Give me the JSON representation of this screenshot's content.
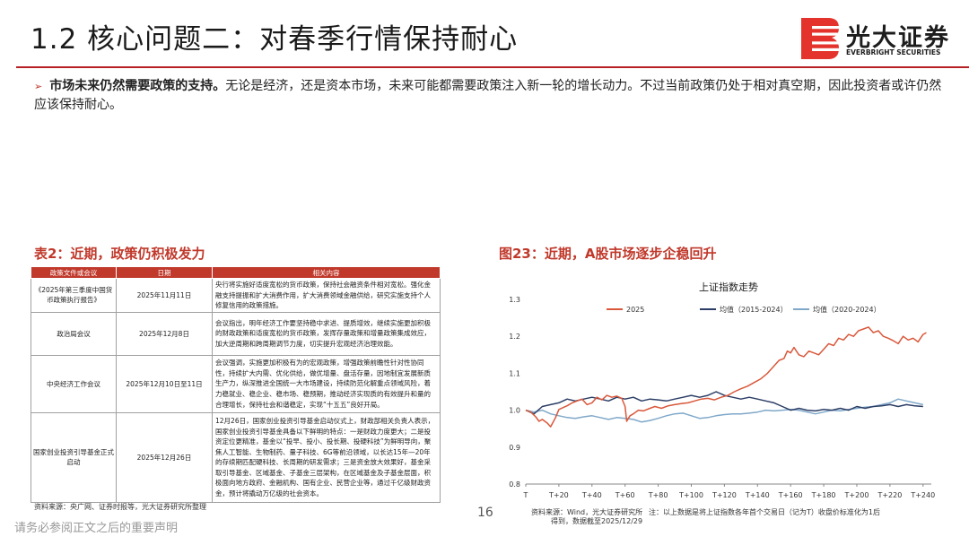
{
  "header": {
    "title": "1.2 核心问题二：对春季行情保持耐心",
    "logo_cn": "光大证券",
    "logo_en": "EVERBRIGHT SECURITIES",
    "brand_color": "#e4332c",
    "rule_color": "#b62025"
  },
  "bullet": {
    "arrow": "➢",
    "lead": "市场未来仍然需要政策的支持。",
    "text": "无论是经济，还是资本市场，未来可能都需要政策注入新一轮的增长动力。不过当前政策仍处于相对真空期，因此投资者或许仍然应该保持耐心。"
  },
  "table_section": {
    "title": "表2：近期，政策仍积极发力",
    "headers": [
      "政策文件或会议",
      "日期",
      "相关内容"
    ],
    "rows": [
      {
        "name": "《2025年第三季度中国货币政策执行报告》",
        "date": "2025年11月11日",
        "content": "央行将实施好适度宽松的货币政策，保持社会融资条件相对宽松。强化金融支持提振和扩大消费作用，扩大消费领域金融供给，研究实施支持个人修复信用的政策措施。"
      },
      {
        "name": "政治局会议",
        "date": "2025年12月8日",
        "content": "会议指出，明年经济工作要坚持稳中求进、提质增效，继续实施更加积极的财政政策和适度宽松的货币政策，发挥存量政策和增量政策集成效应，加大逆周期和跨周期调节力度，切实提升宏观经济治理效能。"
      },
      {
        "name": "中央经济工作会议",
        "date": "2025年12月10日至11日",
        "content": "会议强调，实施更加积极有为的宏观政策，增强政策前瞻性针对性协同性，持续扩大内需、优化供给，做优增量、盘活存量，因地制宜发展新质生产力，纵深推进全国统一大市场建设，持续防范化解重点领域风险，着力稳就业、稳企业、稳市场、稳预期，推动经济实现质的有效提升和量的合理增长，保持社会和谐稳定，实现“十五五”良好开局。"
      },
      {
        "name": "国家创业投资引导基金正式启动",
        "date": "2025年12月26日",
        "content": "12月26日，国家创业投资引导基金启动仪式上，财政部相关负责人表示，国家创业投资引导基金具备以下鲜明的特点：一是财政力度更大；二是投资定位更精准，基金以“投早、投小、投长期、投硬科技”为鲜明导向，聚焦人工智能、生物制药、量子科技、6G等前沿领域，以长达15年—20年的存续期匹配硬科技、长周期的研发需求；三是资金放大效果好，基金采取引导基金、区域基金、子基金三层架构，在区域基金及子基金层面，积极面向地方政府、金融机构、国有企业、民营企业等，通过千亿级财政资金，预计将撬动万亿级的社会资本。"
      }
    ],
    "source": "资料来源：央广网、证券时报等，光大证券研究所整理"
  },
  "chart_section": {
    "title": "图23：近期，A股市场逐步企稳回升",
    "source_line1": "资料来源：Wind，光大证券研究所",
    "source_line2": "得到，数据截至2025/12/29",
    "note": "注：以上数据是将上证指数各年首个交易日（记为T）收盘价标准化为1后"
  },
  "page": {
    "number": "16",
    "footer_note": "请务必参阅正文之后的重要声明"
  },
  "chart_data": {
    "type": "line",
    "title": "上证指数走势",
    "xlabel": "",
    "ylabel": "",
    "x_ticks": [
      "T",
      "T+20",
      "T+40",
      "T+60",
      "T+80",
      "T+100",
      "T+120",
      "T+140",
      "T+160",
      "T+180",
      "T+200",
      "T+220",
      "T+240"
    ],
    "xlim": [
      0,
      245
    ],
    "ylim": [
      0.8,
      1.3
    ],
    "y_ticks": [
      0.8,
      0.9,
      1.0,
      1.1,
      1.2,
      1.3
    ],
    "legend_position": "top",
    "grid": false,
    "series": [
      {
        "name": "2025",
        "color": "#d9583b",
        "x": [
          0,
          3,
          6,
          8,
          10,
          13,
          15,
          18,
          20,
          23,
          25,
          28,
          31,
          34,
          37,
          40,
          43,
          46,
          49,
          52,
          55,
          58,
          60,
          61,
          62,
          63,
          65,
          68,
          71,
          75,
          78,
          82,
          86,
          90,
          94,
          98,
          102,
          106,
          110,
          114,
          118,
          122,
          126,
          130,
          134,
          138,
          142,
          146,
          150,
          153,
          156,
          158,
          160,
          162,
          165,
          168,
          171,
          174,
          177,
          180,
          183,
          186,
          189,
          192,
          195,
          198,
          201,
          204,
          207,
          210,
          213,
          216,
          219,
          222,
          225,
          228,
          231,
          234,
          237,
          240,
          242
        ],
        "y": [
          1.0,
          0.995,
          0.982,
          0.97,
          0.975,
          0.965,
          0.955,
          0.98,
          1.002,
          1.008,
          1.012,
          1.02,
          1.025,
          1.03,
          1.015,
          1.02,
          1.035,
          1.028,
          1.04,
          1.035,
          1.038,
          1.032,
          1.01,
          0.97,
          0.978,
          0.985,
          0.99,
          1.0,
          0.998,
          1.005,
          1.01,
          1.005,
          1.012,
          1.015,
          1.018,
          1.02,
          1.025,
          1.03,
          1.032,
          1.028,
          1.035,
          1.04,
          1.05,
          1.058,
          1.065,
          1.075,
          1.085,
          1.1,
          1.12,
          1.135,
          1.14,
          1.16,
          1.155,
          1.17,
          1.15,
          1.145,
          1.16,
          1.155,
          1.15,
          1.165,
          1.18,
          1.175,
          1.195,
          1.19,
          1.205,
          1.2,
          1.215,
          1.22,
          1.225,
          1.21,
          1.215,
          1.2,
          1.195,
          1.188,
          1.18,
          1.2,
          1.19,
          1.195,
          1.185,
          1.205,
          1.21
        ]
      },
      {
        "name": "均值（2015-2024）",
        "color": "#2c3e66",
        "x": [
          0,
          5,
          10,
          15,
          20,
          25,
          30,
          35,
          40,
          45,
          50,
          55,
          60,
          65,
          70,
          75,
          80,
          85,
          90,
          95,
          100,
          105,
          110,
          115,
          120,
          125,
          130,
          135,
          140,
          145,
          150,
          155,
          160,
          165,
          170,
          175,
          180,
          185,
          190,
          195,
          200,
          205,
          210,
          215,
          220,
          225,
          230,
          235,
          240
        ],
        "y": [
          1.0,
          0.99,
          1.01,
          1.015,
          1.02,
          1.03,
          1.025,
          1.03,
          1.035,
          1.03,
          1.025,
          1.035,
          1.03,
          1.035,
          1.025,
          1.03,
          1.028,
          1.025,
          1.03,
          1.035,
          1.04,
          1.035,
          1.04,
          1.05,
          1.04,
          1.035,
          1.03,
          1.035,
          1.03,
          1.025,
          1.02,
          1.01,
          1.0,
          1.005,
          1.0,
          0.998,
          1.002,
          1.0,
          1.005,
          1.0,
          1.01,
          1.005,
          1.01,
          1.012,
          1.015,
          1.01,
          1.015,
          1.012,
          1.01
        ]
      },
      {
        "name": "均值（2020-2024）",
        "color": "#7fa8c9",
        "x": [
          0,
          5,
          10,
          15,
          20,
          25,
          30,
          35,
          40,
          45,
          50,
          55,
          60,
          65,
          70,
          75,
          80,
          85,
          90,
          95,
          100,
          105,
          110,
          115,
          120,
          125,
          130,
          135,
          140,
          145,
          150,
          155,
          160,
          165,
          170,
          175,
          180,
          185,
          190,
          195,
          200,
          205,
          210,
          215,
          220,
          225,
          230,
          235,
          240
        ],
        "y": [
          1.0,
          0.995,
          1.0,
          0.99,
          0.985,
          0.98,
          0.978,
          0.982,
          0.985,
          0.98,
          0.975,
          0.98,
          0.978,
          0.975,
          0.968,
          0.972,
          0.978,
          0.985,
          0.99,
          0.992,
          0.985,
          0.978,
          0.98,
          0.985,
          0.988,
          0.99,
          0.99,
          0.992,
          0.995,
          1.0,
          0.998,
          1.0,
          1.002,
          1.0,
          0.995,
          0.99,
          0.995,
          1.0,
          0.998,
          1.002,
          1.005,
          1.008,
          1.01,
          1.015,
          1.02,
          1.03,
          1.025,
          1.02,
          1.015
        ]
      }
    ]
  }
}
